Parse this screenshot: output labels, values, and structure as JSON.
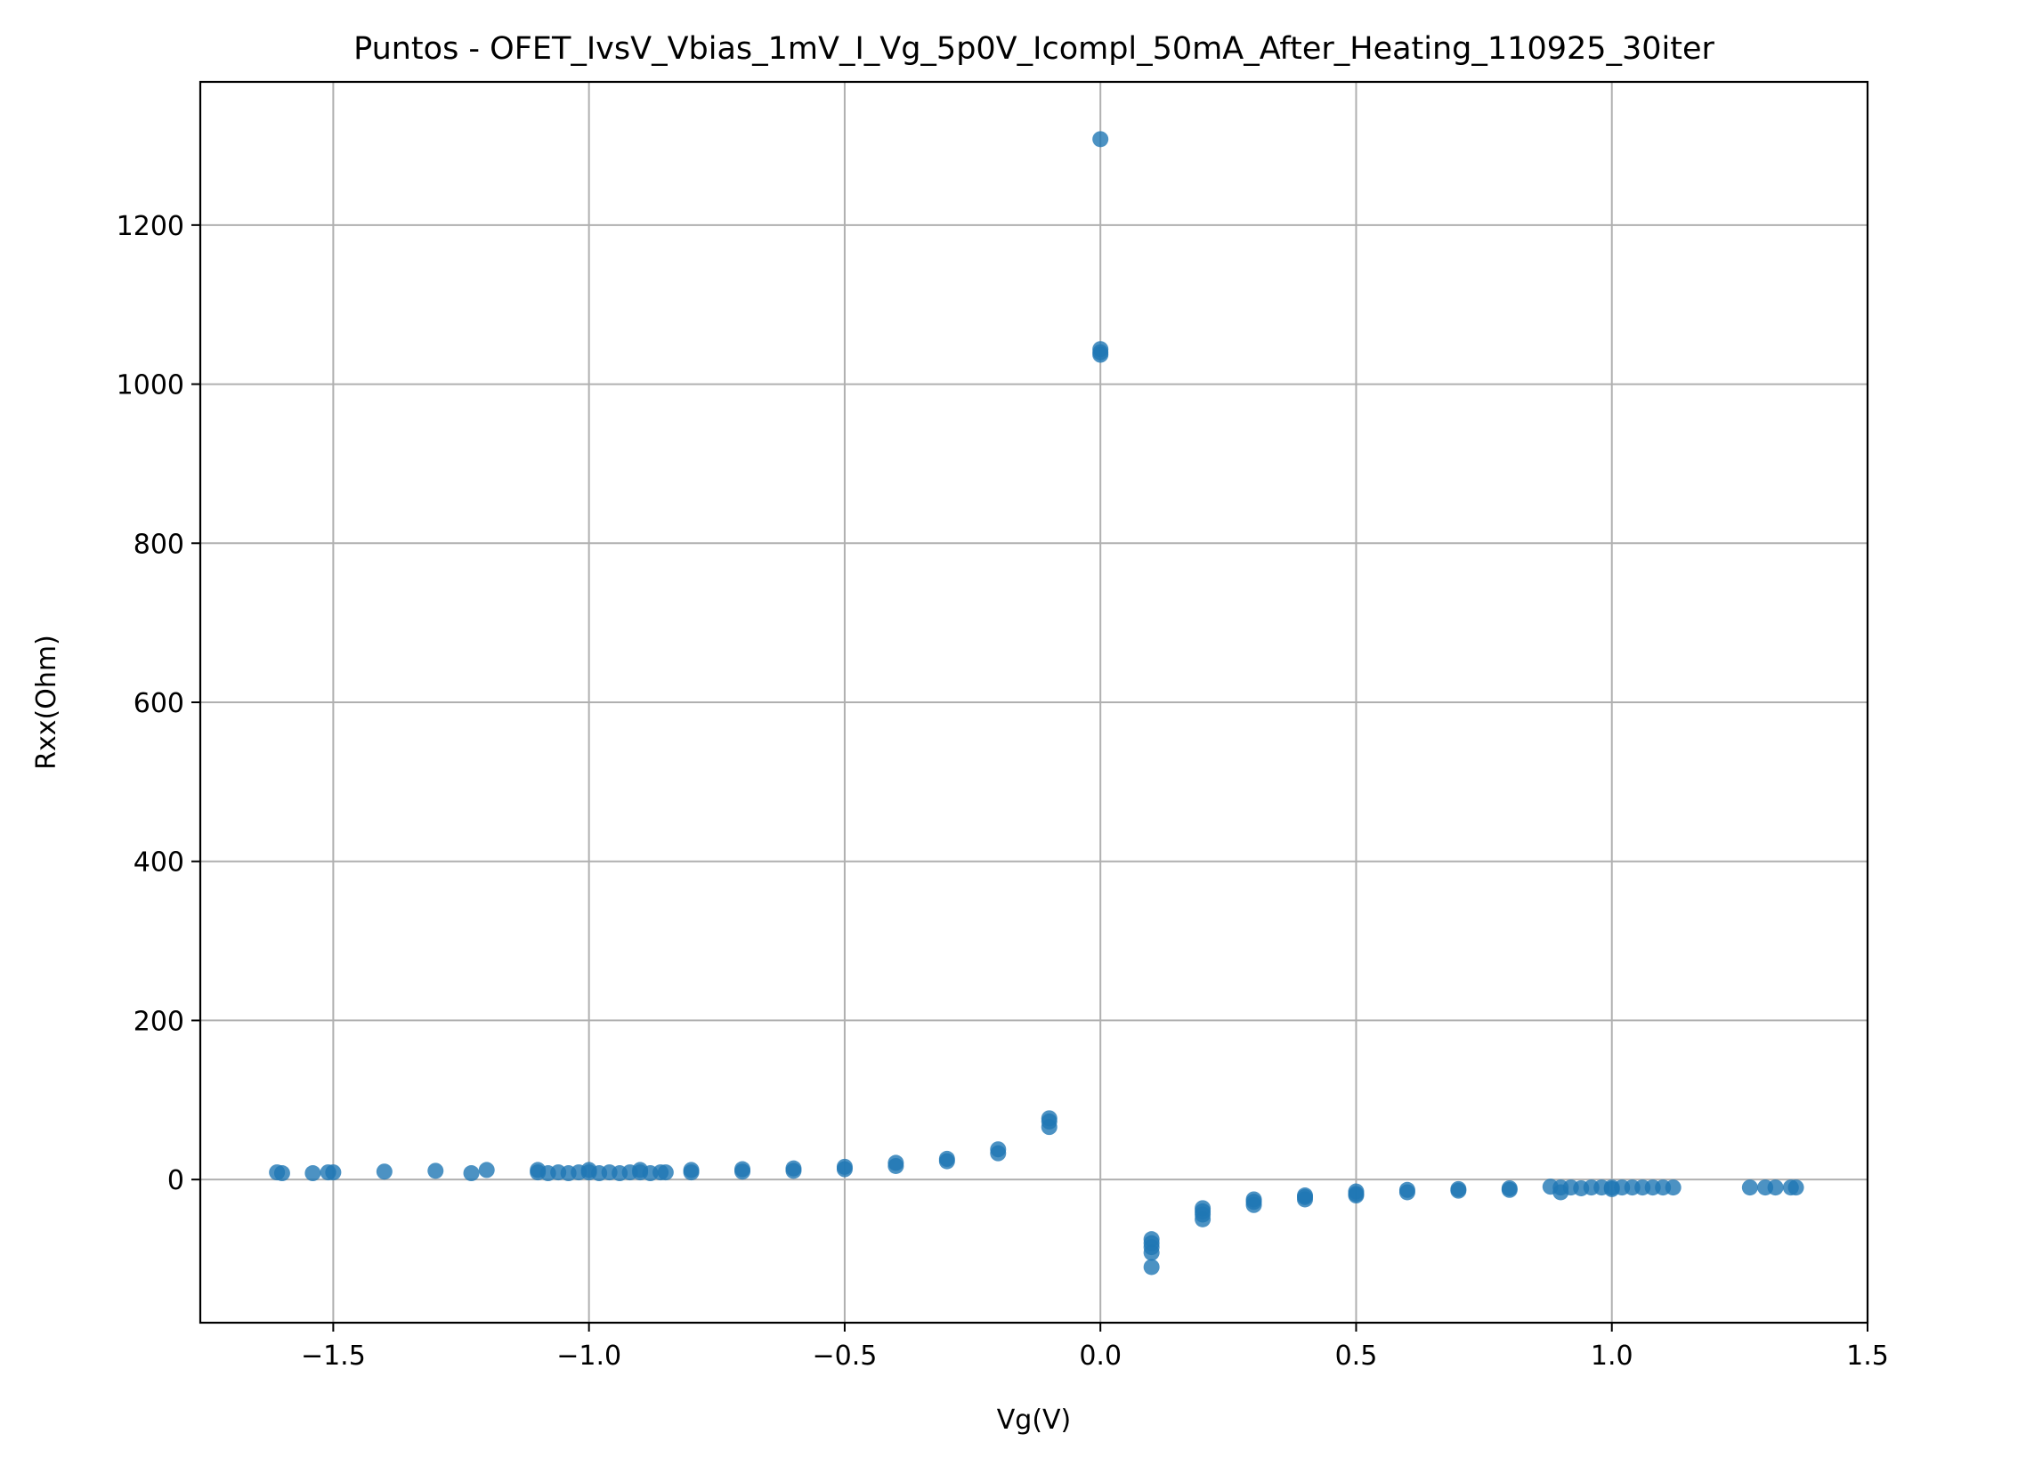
{
  "chart_data": {
    "type": "scatter",
    "title": "Puntos - OFET_IvsV_Vbias_1mV_I_Vg_5p0V_Icompl_50mA_After_Heating_110925_30iter",
    "xlabel": "Vg(V)",
    "ylabel": "Rxx(Ohm)",
    "xlim": [
      -1.76,
      1.5
    ],
    "ylim": [
      -180,
      1380
    ],
    "x_ticks": [
      -1.5,
      -1.0,
      -0.5,
      0.0,
      0.5,
      1.0,
      1.5
    ],
    "x_tick_labels": [
      "−1.5",
      "−1.0",
      "−0.5",
      "0.0",
      "0.5",
      "1.0",
      "1.5"
    ],
    "y_ticks": [
      0,
      200,
      400,
      600,
      800,
      1000,
      1200
    ],
    "y_tick_labels": [
      "0",
      "200",
      "400",
      "600",
      "800",
      "1000",
      "1200"
    ],
    "grid": true,
    "marker_color": "#1f77b4",
    "series": [
      {
        "x": [
          -1.61,
          -1.6,
          -1.54,
          -1.51,
          -1.5,
          -1.4,
          -1.3,
          -1.23,
          -1.2,
          -1.1,
          -1.1,
          -1.08,
          -1.06,
          -1.04,
          -1.02,
          -1.0,
          -1.0,
          -0.98,
          -0.96,
          -0.94,
          -0.92,
          -0.9,
          -0.9,
          -0.88,
          -0.86,
          -0.85,
          -0.8,
          -0.8,
          -0.7,
          -0.7,
          -0.6,
          -0.6,
          -0.5,
          -0.5,
          -0.4,
          -0.4,
          -0.3,
          -0.3,
          -0.2,
          -0.2,
          -0.1,
          -0.1,
          -0.1,
          0.0,
          0.0,
          0.0,
          0.0,
          0.1,
          0.1,
          0.1,
          0.1,
          0.1,
          0.2,
          0.2,
          0.2,
          0.2,
          0.3,
          0.3,
          0.3,
          0.4,
          0.4,
          0.4,
          0.5,
          0.5,
          0.5,
          0.6,
          0.6,
          0.7,
          0.7,
          0.8,
          0.8,
          0.88,
          0.9,
          0.9,
          0.92,
          0.94,
          0.96,
          0.98,
          1.0,
          1.0,
          1.02,
          1.04,
          1.06,
          1.08,
          1.1,
          1.12,
          1.27,
          1.3,
          1.32,
          1.35,
          1.36
        ],
        "y": [
          9,
          8,
          8,
          9,
          9,
          10,
          11,
          8,
          12,
          9,
          12,
          8,
          9,
          8,
          9,
          9,
          12,
          8,
          9,
          8,
          9,
          9,
          12,
          8,
          9,
          9,
          9,
          12,
          10,
          13,
          11,
          14,
          13,
          16,
          17,
          21,
          23,
          26,
          33,
          38,
          66,
          73,
          77,
          1308,
          1037,
          1040,
          1044,
          -110,
          -92,
          -85,
          -80,
          -75,
          -50,
          -44,
          -40,
          -36,
          -32,
          -28,
          -25,
          -25,
          -22,
          -20,
          -20,
          -18,
          -15,
          -16,
          -13,
          -14,
          -12,
          -13,
          -11,
          -9,
          -16,
          -10,
          -10,
          -11,
          -10,
          -10,
          -10,
          -12,
          -10,
          -10,
          -10,
          -10,
          -10,
          -10,
          -10,
          -10,
          -10,
          -10,
          -10
        ]
      }
    ]
  }
}
